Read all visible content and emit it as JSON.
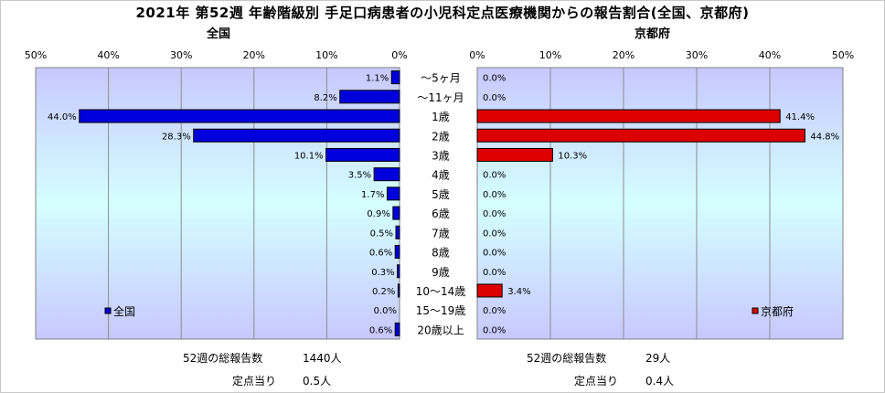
{
  "title": "2021年 第52週 年齢階級別 手足口病患者の小児科定点医療機関からの報告割合(全国、京都府)",
  "chart_data": {
    "type": "bar",
    "categories": [
      "～5ヶ月",
      "～11ヶ月",
      "1歳",
      "2歳",
      "3歳",
      "4歳",
      "5歳",
      "6歳",
      "7歳",
      "8歳",
      "9歳",
      "10～14歳",
      "15～19歳",
      "20歳以上"
    ],
    "value_unit": "%",
    "xlim": [
      0,
      50
    ],
    "x_ticks": [
      "0%",
      "10%",
      "20%",
      "30%",
      "40%",
      "50%"
    ],
    "series": [
      {
        "name": "全国",
        "panel_title": "全国",
        "color": "#0000dd",
        "values": [
          1.1,
          8.2,
          44.0,
          28.3,
          10.1,
          3.5,
          1.7,
          0.9,
          0.5,
          0.6,
          0.3,
          0.2,
          0.0,
          0.6
        ],
        "labels": [
          "1.1%",
          "8.2%",
          "44.0%",
          "28.3%",
          "10.1%",
          "3.5%",
          "1.7%",
          "0.9%",
          "0.5%",
          "0.6%",
          "0.3%",
          "0.2%",
          "0.0%",
          "0.6%"
        ]
      },
      {
        "name": "京都府",
        "panel_title": "京都府",
        "color": "#dd0000",
        "values": [
          0.0,
          0.0,
          41.4,
          44.8,
          10.3,
          0.0,
          0.0,
          0.0,
          0.0,
          0.0,
          0.0,
          3.4,
          0.0,
          0.0
        ],
        "labels": [
          "0.0%",
          "0.0%",
          "41.4%",
          "44.8%",
          "10.3%",
          "0.0%",
          "0.0%",
          "0.0%",
          "0.0%",
          "0.0%",
          "0.0%",
          "3.4%",
          "0.0%",
          "0.0%"
        ]
      }
    ],
    "grid": true,
    "legend": "bottom-left / bottom-right"
  },
  "footer": {
    "national": {
      "reports_label": "52週の総報告数",
      "reports_value": "1440人",
      "per_site_label": "定点当り",
      "per_site_value": "0.5人"
    },
    "kyoto": {
      "reports_label": "52週の総報告数",
      "reports_value": "29人",
      "per_site_label": "定点当り",
      "per_site_value": "0.4人"
    }
  }
}
